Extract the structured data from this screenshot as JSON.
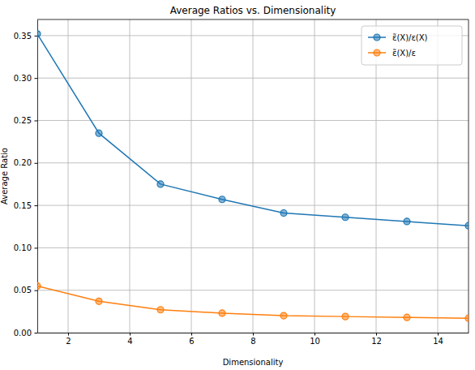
{
  "chart_data": {
    "type": "line",
    "title": "Average Ratios vs. Dimensionality",
    "x_label": "Dimensionality",
    "y_label": "Average Ratio",
    "x": [
      1,
      3,
      5,
      7,
      9,
      11,
      13,
      15
    ],
    "series": [
      {
        "name": "ε̃(X)/ε(X)",
        "color": "#1f77b4",
        "marker": "circle",
        "values": [
          0.352,
          0.235,
          0.175,
          0.157,
          0.141,
          0.136,
          0.131,
          0.126
        ]
      },
      {
        "name": "ε̃(X)/ε",
        "color": "#ff7f0e",
        "marker": "circle",
        "values": [
          0.055,
          0.037,
          0.027,
          0.023,
          0.02,
          0.019,
          0.018,
          0.017
        ]
      }
    ],
    "xlim": [
      1,
      15
    ],
    "xticks": [
      2,
      4,
      6,
      8,
      10,
      12,
      14
    ],
    "ylim": [
      0,
      0.369
    ],
    "yticks": [
      {
        "value": 0,
        "label": "0.00"
      },
      {
        "value": 0.05,
        "label": "0.05"
      },
      {
        "value": 0.1,
        "label": "0.10"
      },
      {
        "value": 0.15,
        "label": "0.15"
      },
      {
        "value": 0.2,
        "label": "0.20"
      },
      {
        "value": 0.25,
        "label": "0.25"
      },
      {
        "value": 0.3,
        "label": "0.30"
      },
      {
        "value": 0.35,
        "label": "0.35"
      }
    ],
    "grid": true,
    "legend": "upper right"
  }
}
